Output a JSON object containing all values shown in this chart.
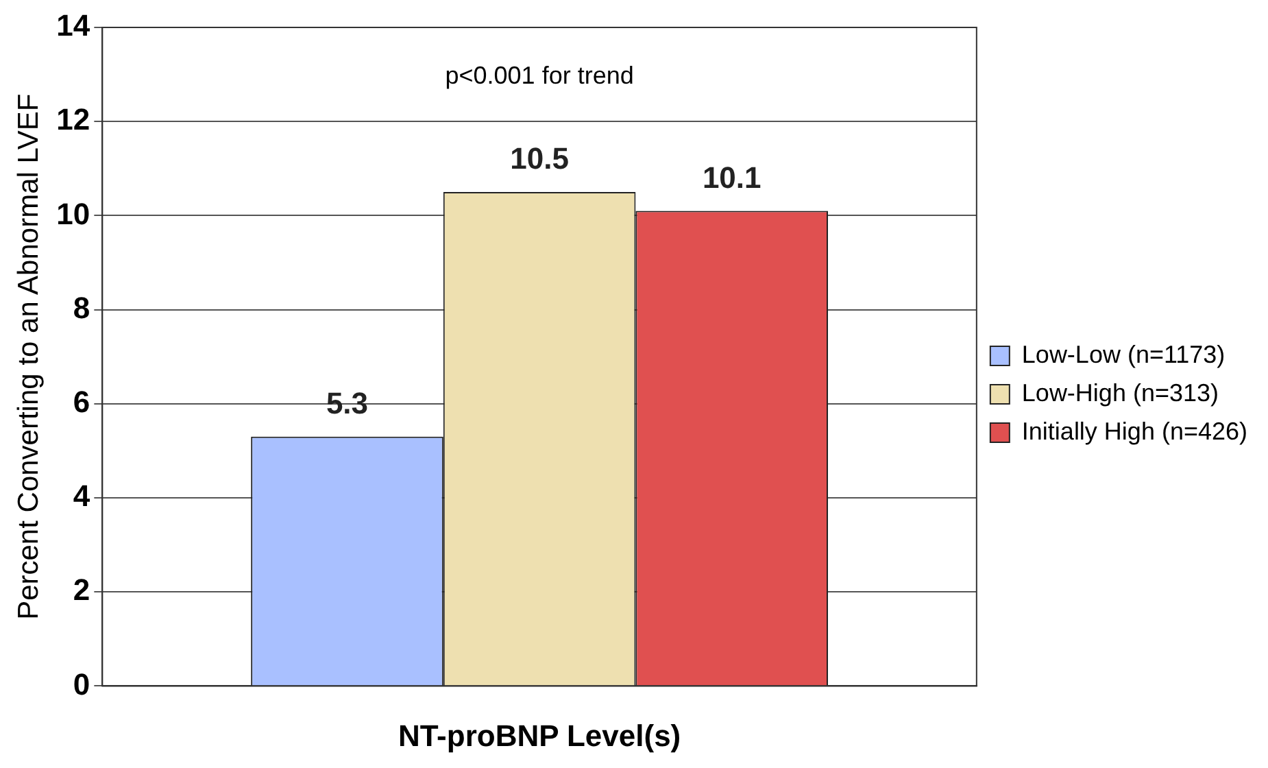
{
  "chart_data": {
    "type": "bar",
    "xlabel": "NT-proBNP Level(s)",
    "ylabel": "Percent Converting to an Abnormal LVEF",
    "categories": [
      null
    ],
    "series": [
      {
        "name": "Low-Low (n=1173)",
        "color": "#a9c0ff",
        "values": [
          5.3
        ]
      },
      {
        "name": "Low-High (n=313)",
        "color": "#eee0b0",
        "values": [
          10.5
        ]
      },
      {
        "name": "Initially High (n=426)",
        "color": "#e05050",
        "values": [
          10.1
        ]
      }
    ],
    "ylim": [
      0,
      14
    ],
    "yticks": [
      0,
      2,
      4,
      6,
      8,
      10,
      12,
      14
    ],
    "grid": "y",
    "legend": "right",
    "data_labels": true,
    "annotations": [
      "p<0.001 for trend"
    ]
  }
}
